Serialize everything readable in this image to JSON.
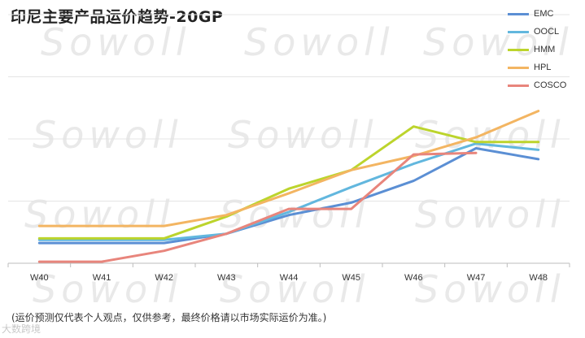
{
  "title": "印尼主要产品运价趋势-20GP",
  "footnote": "(运价预测仅代表个人观点，仅供参考，最终价格请以市场实际运价为准。)",
  "watermark_text": "Sowoll",
  "corner_watermark": "大数跨境",
  "chart_data": {
    "type": "line",
    "categories": [
      "W40",
      "W41",
      "W42",
      "W43",
      "W44",
      "W45",
      "W46",
      "W47",
      "W48"
    ],
    "series": [
      {
        "name": "EMC",
        "color": "#5b8fd4",
        "values": [
          13,
          13,
          13,
          19,
          31,
          39,
          53,
          74,
          67
        ]
      },
      {
        "name": "OOCL",
        "color": "#62b7de",
        "values": [
          15,
          15,
          15,
          19,
          33,
          49,
          64,
          77,
          73
        ]
      },
      {
        "name": "HMM",
        "color": "#bcd42c",
        "values": [
          16,
          16,
          16,
          30,
          48,
          60,
          88,
          78,
          78
        ]
      },
      {
        "name": "HPL",
        "color": "#f3b562",
        "values": [
          24,
          24,
          24,
          31,
          45,
          60,
          69,
          81,
          98
        ]
      },
      {
        "name": "COSCO",
        "color": "#e8857c",
        "values": [
          1,
          1,
          8,
          19,
          35,
          35,
          70,
          71,
          null
        ]
      }
    ],
    "ylim": [
      0,
      160
    ],
    "grid": true,
    "legend_position": "top-right"
  }
}
